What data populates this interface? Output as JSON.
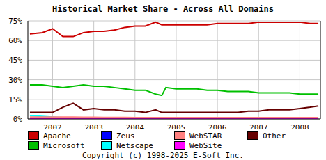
{
  "chart_data": {
    "type": "line",
    "title": "Historical Market Share - Across All Domains",
    "annotations": [
      "Copyright (c) 1998-2025 E-Soft Inc."
    ],
    "x": [
      2001.45,
      2001.75,
      2002,
      2002.25,
      2002.5,
      2002.75,
      2003,
      2003.25,
      2003.5,
      2003.75,
      2004,
      2004.25,
      2004.5,
      2004.65,
      2004.75,
      2005,
      2005.25,
      2005.5,
      2005.75,
      2006,
      2006.25,
      2006.5,
      2006.75,
      2007,
      2007.25,
      2007.5,
      2007.75,
      2008,
      2008.25,
      2008.45
    ],
    "xlim": [
      2001.4,
      2008.5
    ],
    "xticks": [
      2002,
      2003,
      2004,
      2005,
      2006,
      2007,
      2008
    ],
    "ylim": [
      0,
      75
    ],
    "yticks": [
      {
        "value": 0,
        "label": "0%"
      },
      {
        "value": 15,
        "label": "15%"
      },
      {
        "value": 30,
        "label": "30%"
      },
      {
        "value": 45,
        "label": "45%"
      },
      {
        "value": 60,
        "label": "60%"
      },
      {
        "value": 75,
        "label": "75%"
      }
    ],
    "grid": true,
    "legend": "bottom",
    "series": [
      {
        "name": "Apache",
        "color": "#cc0000",
        "values": [
          65,
          66,
          69,
          63,
          63,
          66,
          67,
          67,
          68,
          70,
          71,
          71,
          74,
          72,
          72,
          72,
          72,
          72,
          72,
          73,
          73,
          73,
          73,
          74,
          74,
          74,
          74,
          74,
          73,
          73
        ]
      },
      {
        "name": "Microsoft",
        "color": "#00c000",
        "values": [
          26,
          26,
          25,
          24,
          25,
          26,
          25,
          25,
          24,
          23,
          22,
          22,
          19,
          18,
          24,
          23,
          23,
          23,
          22,
          22,
          21,
          21,
          21,
          20,
          20,
          20,
          20,
          19,
          19,
          19
        ]
      },
      {
        "name": "Zeus",
        "color": "#0000ff",
        "values": [
          0.5,
          0.5,
          0.5,
          0.5,
          0.5,
          0.5,
          0.5,
          0.5,
          0.5,
          0.5,
          0.5,
          0.5,
          0.5,
          0.5,
          0.5,
          0.5,
          0.5,
          0.5,
          0.5,
          0.5,
          0.5,
          0.5,
          0.5,
          0.5,
          0.5,
          0.5,
          0.5,
          0.5,
          0.5,
          0.5
        ]
      },
      {
        "name": "Netscape",
        "color": "#00ffff",
        "values": [
          2.5,
          2,
          1.5,
          1,
          1,
          1,
          0.8,
          0.8,
          0.7,
          0.7,
          0.6,
          0.6,
          0.5,
          0.5,
          0.5,
          0.5,
          0.5,
          0.5,
          0.5,
          0.5,
          0.5,
          0.5,
          0.5,
          0.5,
          0.5,
          0.5,
          0.5,
          0.5,
          0.5,
          0.5
        ]
      },
      {
        "name": "WebSTAR",
        "color": "#ff8080",
        "values": [
          1.5,
          1.5,
          1.5,
          1.4,
          1.4,
          1.3,
          1.3,
          1.2,
          1.2,
          1.2,
          1.1,
          1.1,
          1,
          1,
          1,
          1,
          1,
          1,
          1,
          1,
          1,
          1,
          1,
          1,
          1,
          1,
          1,
          1,
          1,
          1
        ]
      },
      {
        "name": "WebSite",
        "color": "#ff00ff",
        "values": [
          0.3,
          0.3,
          0.3,
          0.3,
          0.3,
          0.3,
          0.3,
          0.3,
          0.3,
          0.3,
          0.3,
          0.3,
          0.3,
          0.3,
          0.3,
          0.3,
          0.3,
          0.3,
          0.3,
          0.3,
          0.3,
          0.3,
          0.3,
          0.3,
          0.3,
          0.3,
          0.3,
          0.3,
          0.3,
          0.3
        ]
      },
      {
        "name": "Other",
        "color": "#660000",
        "values": [
          5,
          5,
          5,
          9,
          12,
          7,
          8,
          7,
          7,
          6,
          6,
          5,
          7,
          5,
          5,
          5,
          5,
          5,
          5,
          5,
          5,
          5,
          6,
          6,
          7,
          7,
          7,
          8,
          9,
          10
        ]
      }
    ]
  }
}
